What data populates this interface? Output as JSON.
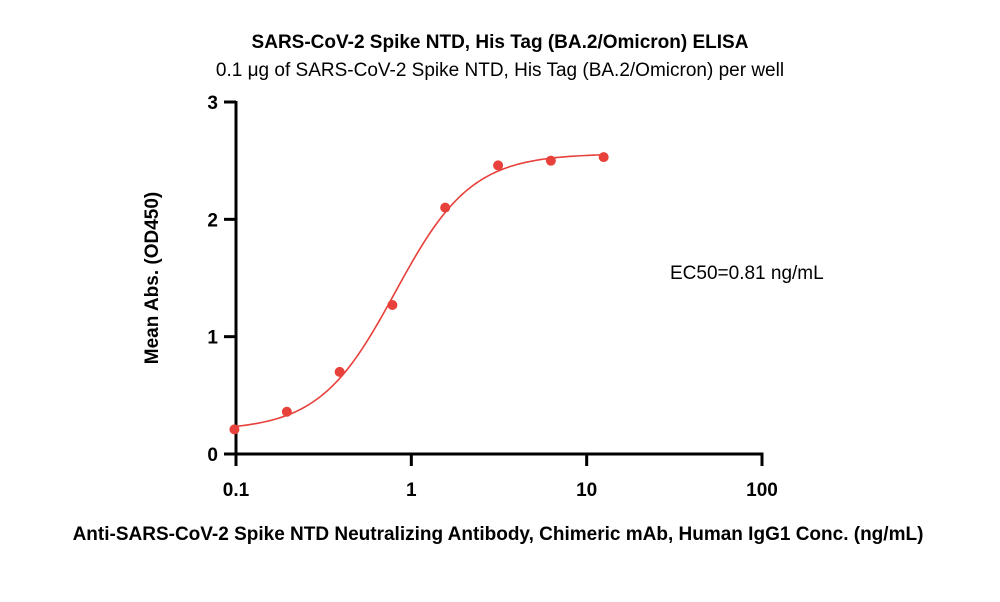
{
  "chart_data": {
    "type": "scatter",
    "title": "SARS-CoV-2 Spike NTD, His Tag (BA.2/Omicron) ELISA",
    "subtitle": "0.1 μg of SARS-CoV-2 Spike NTD, His Tag (BA.2/Omicron) per well",
    "xlabel": "Anti-SARS-CoV-2 Spike NTD Neutralizing Antibody, Chimeric mAb, Human IgG1 Conc. (ng/mL)",
    "ylabel": "Mean Abs. (OD450)",
    "x_scale": "log",
    "xlim": [
      0.1,
      100
    ],
    "ylim": [
      0,
      3
    ],
    "x_ticks": [
      0.1,
      1,
      10,
      100
    ],
    "x_tick_labels": [
      "0.1",
      "1",
      "10",
      "100"
    ],
    "y_ticks": [
      0,
      1,
      2,
      3
    ],
    "y_tick_labels": [
      "0",
      "1",
      "2",
      "3"
    ],
    "grid": false,
    "series": [
      {
        "x": [
          0.098,
          0.195,
          0.39,
          0.78,
          1.56,
          3.125,
          6.25,
          12.5
        ],
        "y": [
          0.21,
          0.36,
          0.7,
          1.27,
          2.1,
          2.46,
          2.5,
          2.53
        ],
        "color": "#e8403a",
        "fit": "4PL"
      }
    ],
    "fit_params": {
      "bottom": 0.2,
      "top": 2.56,
      "ec50": 0.81,
      "hill": 2.0
    },
    "annotation": "EC50=0.81 ng/mL"
  }
}
